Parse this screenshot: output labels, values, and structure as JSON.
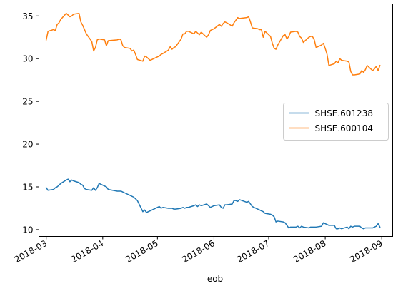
{
  "chart_data": {
    "type": "line",
    "xlabel": "eob",
    "ylabel": "",
    "ylim": [
      9.2,
      36.4
    ],
    "xlim": [
      "2018-02-25",
      "2018-09-07"
    ],
    "x_ticks": [
      "2018-03",
      "2018-04",
      "2018-05",
      "2018-06",
      "2018-07",
      "2018-08",
      "2018-09"
    ],
    "y_ticks": [
      10,
      15,
      20,
      25,
      30,
      35
    ],
    "grid": false,
    "legend_position": "center-right",
    "series": [
      {
        "name": "SHSE.601238",
        "color": "#1f77b4",
        "points": [
          [
            "2018-03-01",
            14.9
          ],
          [
            "2018-03-02",
            14.6
          ],
          [
            "2018-03-05",
            14.7
          ],
          [
            "2018-03-06",
            14.9
          ],
          [
            "2018-03-07",
            15.0
          ],
          [
            "2018-03-08",
            15.2
          ],
          [
            "2018-03-09",
            15.4
          ],
          [
            "2018-03-12",
            15.8
          ],
          [
            "2018-03-13",
            15.9
          ],
          [
            "2018-03-14",
            15.6
          ],
          [
            "2018-03-15",
            15.8
          ],
          [
            "2018-03-16",
            15.7
          ],
          [
            "2018-03-19",
            15.5
          ],
          [
            "2018-03-20",
            15.3
          ],
          [
            "2018-03-21",
            15.2
          ],
          [
            "2018-03-22",
            14.8
          ],
          [
            "2018-03-23",
            14.7
          ],
          [
            "2018-03-26",
            14.6
          ],
          [
            "2018-03-27",
            14.9
          ],
          [
            "2018-03-28",
            14.6
          ],
          [
            "2018-03-29",
            14.9
          ],
          [
            "2018-03-30",
            15.4
          ],
          [
            "2018-04-02",
            15.1
          ],
          [
            "2018-04-03",
            15.0
          ],
          [
            "2018-04-04",
            14.7
          ],
          [
            "2018-04-09",
            14.5
          ],
          [
            "2018-04-10",
            14.5
          ],
          [
            "2018-04-11",
            14.5
          ],
          [
            "2018-04-12",
            14.4
          ],
          [
            "2018-04-13",
            14.3
          ],
          [
            "2018-04-16",
            14.0
          ],
          [
            "2018-04-17",
            13.9
          ],
          [
            "2018-04-18",
            13.8
          ],
          [
            "2018-04-19",
            13.6
          ],
          [
            "2018-04-20",
            13.4
          ],
          [
            "2018-04-23",
            12.1
          ],
          [
            "2018-04-24",
            12.3
          ],
          [
            "2018-04-25",
            12.0
          ],
          [
            "2018-04-26",
            12.1
          ],
          [
            "2018-04-27",
            12.2
          ],
          [
            "2018-05-02",
            12.7
          ],
          [
            "2018-05-03",
            12.5
          ],
          [
            "2018-05-04",
            12.6
          ],
          [
            "2018-05-07",
            12.5
          ],
          [
            "2018-05-08",
            12.5
          ],
          [
            "2018-05-09",
            12.5
          ],
          [
            "2018-05-10",
            12.4
          ],
          [
            "2018-05-11",
            12.4
          ],
          [
            "2018-05-14",
            12.5
          ],
          [
            "2018-05-15",
            12.6
          ],
          [
            "2018-05-16",
            12.5
          ],
          [
            "2018-05-17",
            12.6
          ],
          [
            "2018-05-18",
            12.6
          ],
          [
            "2018-05-21",
            12.8
          ],
          [
            "2018-05-22",
            12.9
          ],
          [
            "2018-05-23",
            12.7
          ],
          [
            "2018-05-24",
            12.9
          ],
          [
            "2018-05-25",
            12.8
          ],
          [
            "2018-05-28",
            13.0
          ],
          [
            "2018-05-29",
            12.8
          ],
          [
            "2018-05-30",
            12.6
          ],
          [
            "2018-05-31",
            12.7
          ],
          [
            "2018-06-01",
            12.8
          ],
          [
            "2018-06-04",
            12.9
          ],
          [
            "2018-06-05",
            12.6
          ],
          [
            "2018-06-06",
            12.5
          ],
          [
            "2018-06-07",
            12.9
          ],
          [
            "2018-06-08",
            12.9
          ],
          [
            "2018-06-11",
            13.0
          ],
          [
            "2018-06-12",
            13.4
          ],
          [
            "2018-06-13",
            13.4
          ],
          [
            "2018-06-14",
            13.3
          ],
          [
            "2018-06-15",
            13.5
          ],
          [
            "2018-06-19",
            13.2
          ],
          [
            "2018-06-20",
            13.3
          ],
          [
            "2018-06-21",
            13.0
          ],
          [
            "2018-06-22",
            12.7
          ],
          [
            "2018-06-25",
            12.4
          ],
          [
            "2018-06-26",
            12.3
          ],
          [
            "2018-06-27",
            12.2
          ],
          [
            "2018-06-28",
            12.1
          ],
          [
            "2018-06-29",
            11.9
          ],
          [
            "2018-07-02",
            11.8
          ],
          [
            "2018-07-03",
            11.7
          ],
          [
            "2018-07-04",
            11.5
          ],
          [
            "2018-07-05",
            10.9
          ],
          [
            "2018-07-06",
            11.0
          ],
          [
            "2018-07-09",
            10.9
          ],
          [
            "2018-07-10",
            10.8
          ],
          [
            "2018-07-11",
            10.5
          ],
          [
            "2018-07-12",
            10.2
          ],
          [
            "2018-07-13",
            10.3
          ],
          [
            "2018-07-16",
            10.3
          ],
          [
            "2018-07-17",
            10.4
          ],
          [
            "2018-07-18",
            10.2
          ],
          [
            "2018-07-19",
            10.4
          ],
          [
            "2018-07-20",
            10.3
          ],
          [
            "2018-07-23",
            10.2
          ],
          [
            "2018-07-24",
            10.3
          ],
          [
            "2018-07-25",
            10.3
          ],
          [
            "2018-07-26",
            10.3
          ],
          [
            "2018-07-27",
            10.3
          ],
          [
            "2018-07-30",
            10.4
          ],
          [
            "2018-07-31",
            10.8
          ],
          [
            "2018-08-01",
            10.7
          ],
          [
            "2018-08-02",
            10.6
          ],
          [
            "2018-08-03",
            10.5
          ],
          [
            "2018-08-06",
            10.5
          ],
          [
            "2018-08-07",
            10.1
          ],
          [
            "2018-08-08",
            10.1
          ],
          [
            "2018-08-09",
            10.2
          ],
          [
            "2018-08-10",
            10.1
          ],
          [
            "2018-08-13",
            10.3
          ],
          [
            "2018-08-14",
            10.1
          ],
          [
            "2018-08-15",
            10.4
          ],
          [
            "2018-08-16",
            10.3
          ],
          [
            "2018-08-17",
            10.4
          ],
          [
            "2018-08-20",
            10.4
          ],
          [
            "2018-08-21",
            10.2
          ],
          [
            "2018-08-22",
            10.1
          ],
          [
            "2018-08-23",
            10.2
          ],
          [
            "2018-08-24",
            10.2
          ],
          [
            "2018-08-27",
            10.2
          ],
          [
            "2018-08-28",
            10.3
          ],
          [
            "2018-08-29",
            10.4
          ],
          [
            "2018-08-30",
            10.7
          ],
          [
            "2018-08-31",
            10.3
          ]
        ]
      },
      {
        "name": "SHSE.600104",
        "color": "#ff7f0e",
        "points": [
          [
            "2018-03-01",
            32.2
          ],
          [
            "2018-03-02",
            33.2
          ],
          [
            "2018-03-05",
            33.4
          ],
          [
            "2018-03-06",
            33.3
          ],
          [
            "2018-03-07",
            34.0
          ],
          [
            "2018-03-08",
            34.2
          ],
          [
            "2018-03-09",
            34.6
          ],
          [
            "2018-03-12",
            35.3
          ],
          [
            "2018-03-13",
            35.1
          ],
          [
            "2018-03-14",
            34.9
          ],
          [
            "2018-03-15",
            35.0
          ],
          [
            "2018-03-16",
            35.2
          ],
          [
            "2018-03-19",
            35.3
          ],
          [
            "2018-03-20",
            34.3
          ],
          [
            "2018-03-21",
            33.9
          ],
          [
            "2018-03-22",
            33.4
          ],
          [
            "2018-03-23",
            32.9
          ],
          [
            "2018-03-26",
            32.0
          ],
          [
            "2018-03-27",
            30.9
          ],
          [
            "2018-03-28",
            31.3
          ],
          [
            "2018-03-29",
            32.2
          ],
          [
            "2018-03-30",
            32.3
          ],
          [
            "2018-04-02",
            32.2
          ],
          [
            "2018-04-03",
            31.5
          ],
          [
            "2018-04-04",
            32.1
          ],
          [
            "2018-04-09",
            32.2
          ],
          [
            "2018-04-10",
            32.3
          ],
          [
            "2018-04-11",
            32.2
          ],
          [
            "2018-04-12",
            31.5
          ],
          [
            "2018-04-13",
            31.3
          ],
          [
            "2018-04-16",
            31.2
          ],
          [
            "2018-04-17",
            30.9
          ],
          [
            "2018-04-18",
            31.0
          ],
          [
            "2018-04-19",
            30.5
          ],
          [
            "2018-04-20",
            29.9
          ],
          [
            "2018-04-23",
            29.7
          ],
          [
            "2018-04-24",
            30.3
          ],
          [
            "2018-04-25",
            30.2
          ],
          [
            "2018-04-26",
            30.0
          ],
          [
            "2018-04-27",
            29.8
          ],
          [
            "2018-05-02",
            30.3
          ],
          [
            "2018-05-03",
            30.5
          ],
          [
            "2018-05-04",
            30.6
          ],
          [
            "2018-05-07",
            31.0
          ],
          [
            "2018-05-08",
            31.4
          ],
          [
            "2018-05-09",
            31.1
          ],
          [
            "2018-05-10",
            31.3
          ],
          [
            "2018-05-11",
            31.4
          ],
          [
            "2018-05-14",
            32.3
          ],
          [
            "2018-05-15",
            32.9
          ],
          [
            "2018-05-16",
            32.9
          ],
          [
            "2018-05-17",
            33.2
          ],
          [
            "2018-05-18",
            33.2
          ],
          [
            "2018-05-21",
            32.9
          ],
          [
            "2018-05-22",
            33.2
          ],
          [
            "2018-05-23",
            33.0
          ],
          [
            "2018-05-24",
            32.8
          ],
          [
            "2018-05-25",
            33.1
          ],
          [
            "2018-05-28",
            32.5
          ],
          [
            "2018-05-29",
            32.8
          ],
          [
            "2018-05-30",
            33.3
          ],
          [
            "2018-05-31",
            33.4
          ],
          [
            "2018-06-01",
            33.5
          ],
          [
            "2018-06-04",
            34.0
          ],
          [
            "2018-06-05",
            33.8
          ],
          [
            "2018-06-06",
            34.1
          ],
          [
            "2018-06-07",
            34.3
          ],
          [
            "2018-06-08",
            34.2
          ],
          [
            "2018-06-11",
            33.8
          ],
          [
            "2018-06-12",
            34.2
          ],
          [
            "2018-06-13",
            34.5
          ],
          [
            "2018-06-14",
            34.8
          ],
          [
            "2018-06-15",
            34.7
          ],
          [
            "2018-06-19",
            34.8
          ],
          [
            "2018-06-20",
            34.9
          ],
          [
            "2018-06-21",
            34.3
          ],
          [
            "2018-06-22",
            33.6
          ],
          [
            "2018-06-25",
            33.5
          ],
          [
            "2018-06-26",
            33.4
          ],
          [
            "2018-06-27",
            33.4
          ],
          [
            "2018-06-28",
            32.5
          ],
          [
            "2018-06-29",
            33.2
          ],
          [
            "2018-07-02",
            32.6
          ],
          [
            "2018-07-03",
            31.8
          ],
          [
            "2018-07-04",
            31.2
          ],
          [
            "2018-07-05",
            31.1
          ],
          [
            "2018-07-06",
            31.6
          ],
          [
            "2018-07-09",
            32.7
          ],
          [
            "2018-07-10",
            32.8
          ],
          [
            "2018-07-11",
            32.3
          ],
          [
            "2018-07-12",
            32.6
          ],
          [
            "2018-07-13",
            33.1
          ],
          [
            "2018-07-16",
            33.2
          ],
          [
            "2018-07-17",
            33.1
          ],
          [
            "2018-07-18",
            32.6
          ],
          [
            "2018-07-19",
            32.4
          ],
          [
            "2018-07-20",
            31.9
          ],
          [
            "2018-07-23",
            32.5
          ],
          [
            "2018-07-24",
            32.6
          ],
          [
            "2018-07-25",
            32.6
          ],
          [
            "2018-07-26",
            32.2
          ],
          [
            "2018-07-27",
            31.3
          ],
          [
            "2018-07-30",
            31.6
          ],
          [
            "2018-07-31",
            31.8
          ],
          [
            "2018-08-01",
            31.2
          ],
          [
            "2018-08-02",
            30.5
          ],
          [
            "2018-08-03",
            29.2
          ],
          [
            "2018-08-06",
            29.4
          ],
          [
            "2018-08-07",
            29.7
          ],
          [
            "2018-08-08",
            29.5
          ],
          [
            "2018-08-09",
            30.0
          ],
          [
            "2018-08-10",
            29.8
          ],
          [
            "2018-08-13",
            29.7
          ],
          [
            "2018-08-14",
            29.6
          ],
          [
            "2018-08-15",
            28.5
          ],
          [
            "2018-08-16",
            28.1
          ],
          [
            "2018-08-17",
            28.1
          ],
          [
            "2018-08-20",
            28.2
          ],
          [
            "2018-08-21",
            28.6
          ],
          [
            "2018-08-22",
            28.4
          ],
          [
            "2018-08-23",
            28.7
          ],
          [
            "2018-08-24",
            29.2
          ],
          [
            "2018-08-27",
            28.6
          ],
          [
            "2018-08-28",
            28.8
          ],
          [
            "2018-08-29",
            29.1
          ],
          [
            "2018-08-30",
            28.6
          ],
          [
            "2018-08-31",
            29.2
          ]
        ]
      }
    ]
  }
}
